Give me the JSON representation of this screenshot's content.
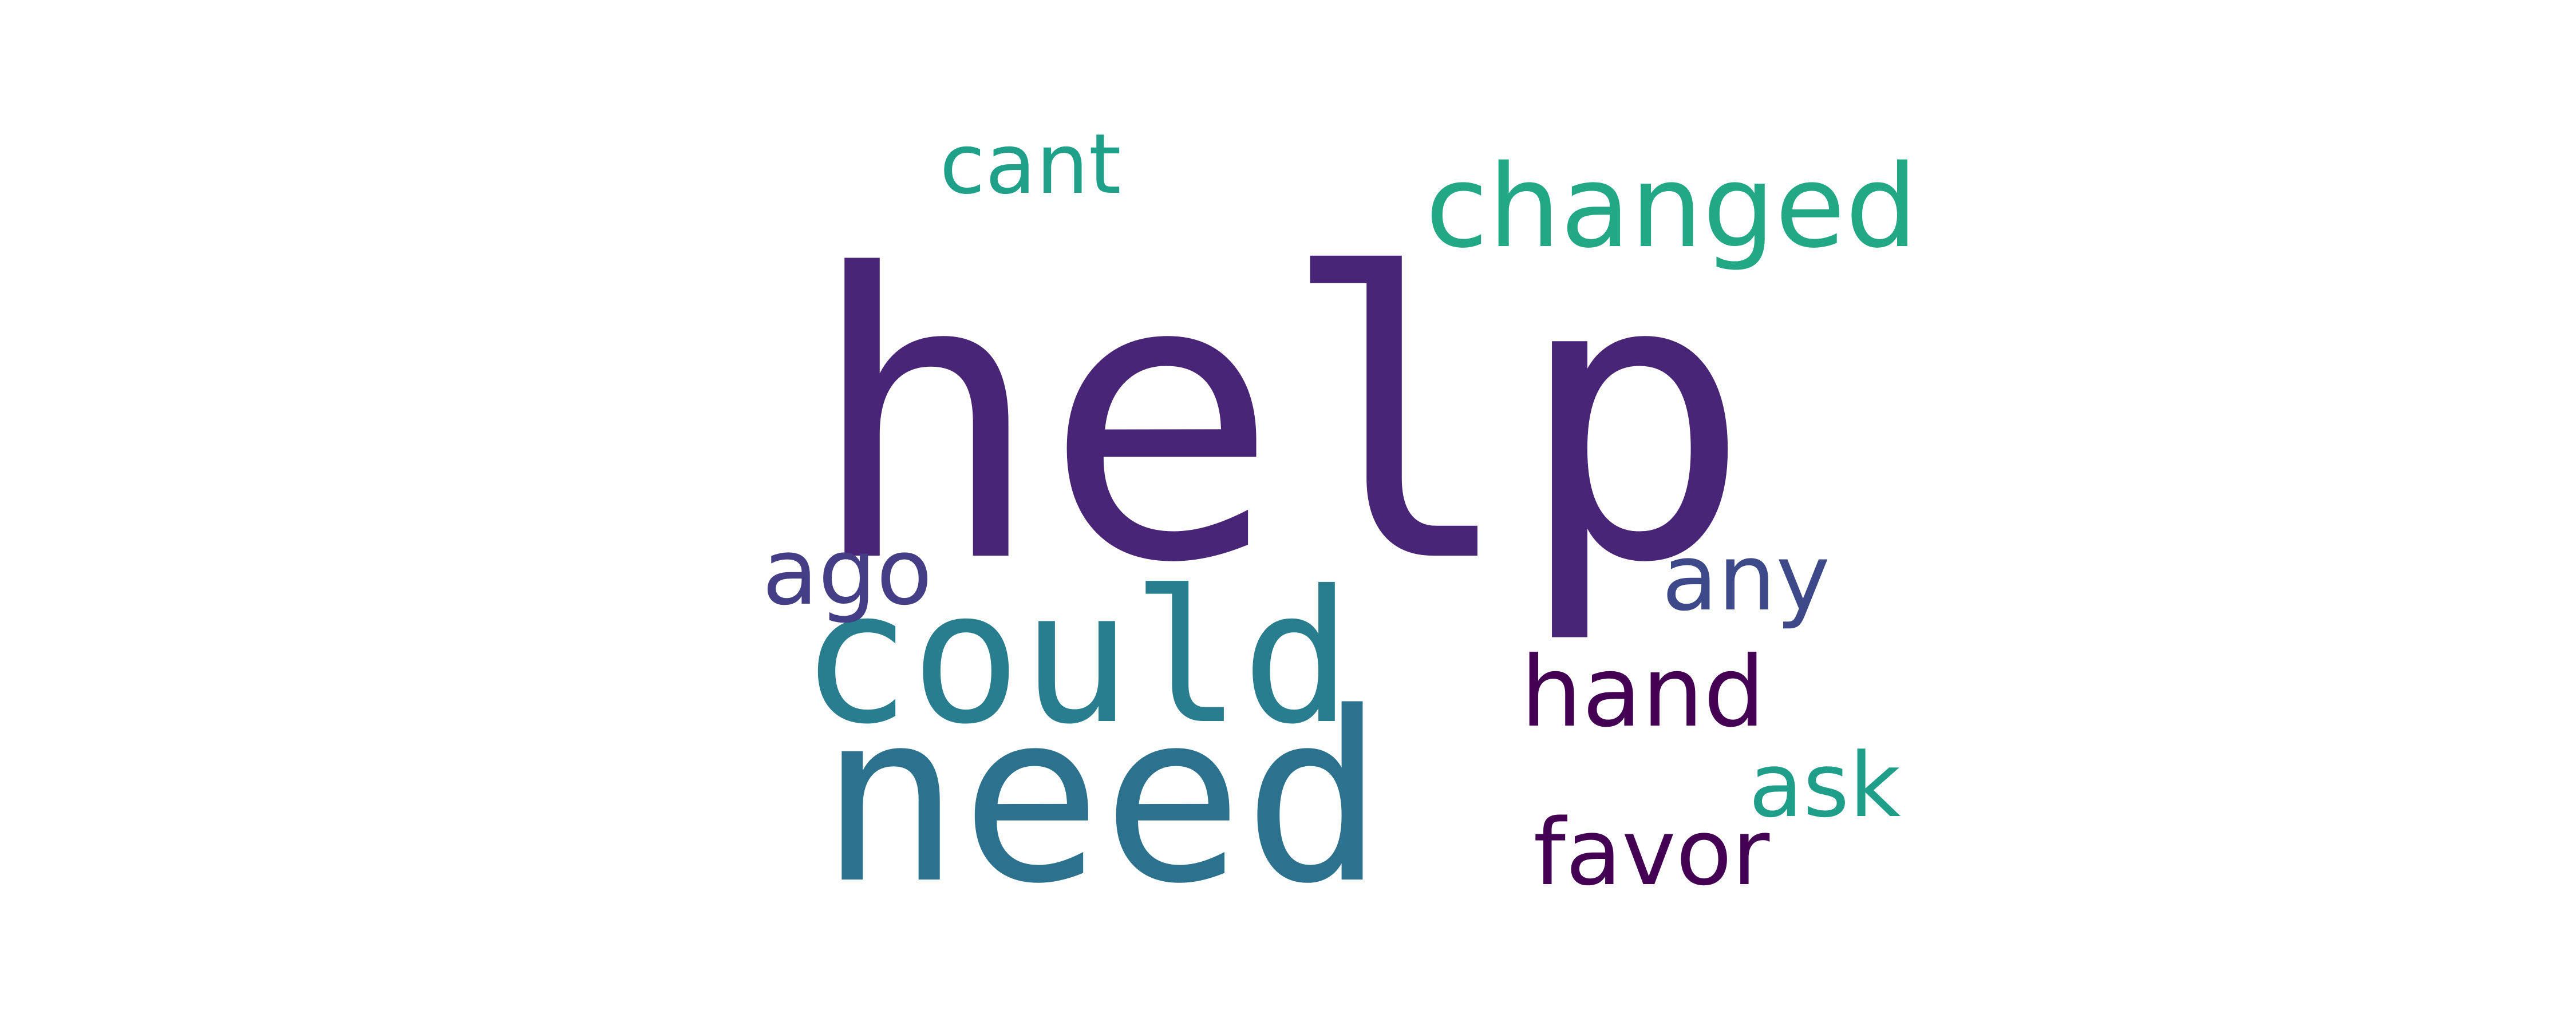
{
  "words": [
    {
      "text": "help",
      "color": "#482576"
    },
    {
      "text": "could",
      "color": "#287d8e"
    },
    {
      "text": "need",
      "color": "#2c728e"
    },
    {
      "text": "changed",
      "color": "#22a884"
    },
    {
      "text": "cant",
      "color": "#1fa088"
    },
    {
      "text": "ago",
      "color": "#433e85"
    },
    {
      "text": "any",
      "color": "#3e4989"
    },
    {
      "text": "hand",
      "color": "#440154"
    },
    {
      "text": "ask",
      "color": "#1f9e89"
    },
    {
      "text": "favor",
      "color": "#440154"
    }
  ]
}
